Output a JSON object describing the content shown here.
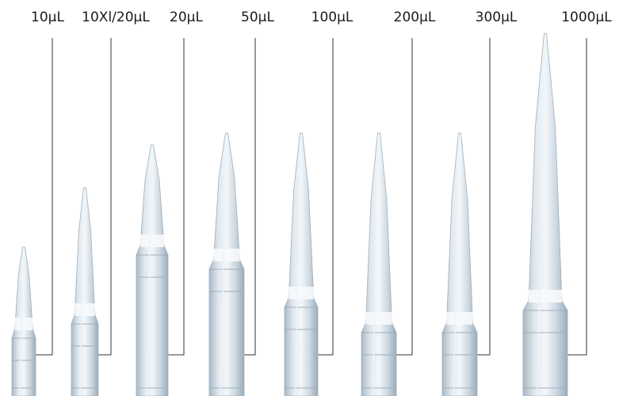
{
  "figure": {
    "tips": [
      {
        "label": "10µL"
      },
      {
        "label": "10Xl/20µL"
      },
      {
        "label": "20µL"
      },
      {
        "label": "50µL"
      },
      {
        "label": "100µL"
      },
      {
        "label": "200µL"
      },
      {
        "label": "300µL"
      },
      {
        "label": "1000µL"
      }
    ],
    "colors": {
      "tip_body": "#c9d3dc",
      "tip_edge": "#9fb0bd",
      "tip_highlight": "#eef3f7",
      "band": "#f7fafc",
      "leader_line": "#333333",
      "label_text": "#1a1a1a"
    }
  }
}
